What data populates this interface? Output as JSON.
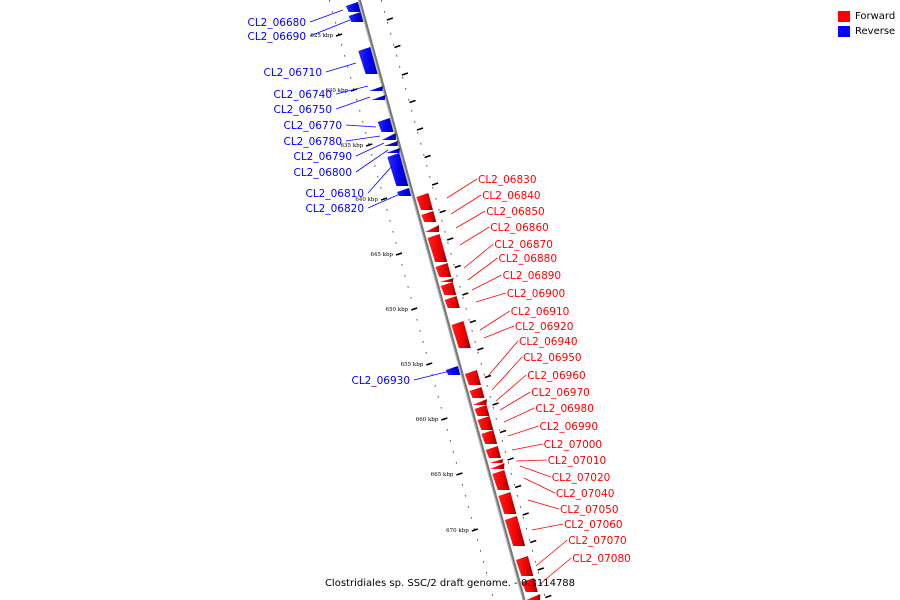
{
  "legend": {
    "forward_label": "Forward",
    "reverse_label": "Reverse",
    "forward_color": "#ff0000",
    "reverse_color": "#0000ff"
  },
  "footer": "Clostridiales sp. SSC/2 draft genome. - 0.3114788",
  "ticks": [
    "625 kbp",
    "630 kbp",
    "635 kbp",
    "640 kbp",
    "645 kbp",
    "650 kbp",
    "655 kbp",
    "660 kbp",
    "665 kbp",
    "670 kbp"
  ],
  "reverse_genes": [
    "CL2_06680",
    "CL2_06690",
    "CL2_06710",
    "CL2_06740",
    "CL2_06750",
    "CL2_06770",
    "CL2_06780",
    "CL2_06790",
    "CL2_06800",
    "CL2_06810",
    "CL2_06820",
    "CL2_06930"
  ],
  "forward_genes": [
    "CL2_06830",
    "CL2_06840",
    "CL2_06850",
    "CL2_06860",
    "CL2_06870",
    "CL2_06880",
    "CL2_06890",
    "CL2_06900",
    "CL2_06910",
    "CL2_06920",
    "CL2_06940",
    "CL2_06950",
    "CL2_06960",
    "CL2_06970",
    "CL2_06980",
    "CL2_06990",
    "CL2_07000",
    "CL2_07010",
    "CL2_07020",
    "CL2_07040",
    "CL2_07050",
    "CL2_07060",
    "CL2_07070",
    "CL2_07080"
  ]
}
